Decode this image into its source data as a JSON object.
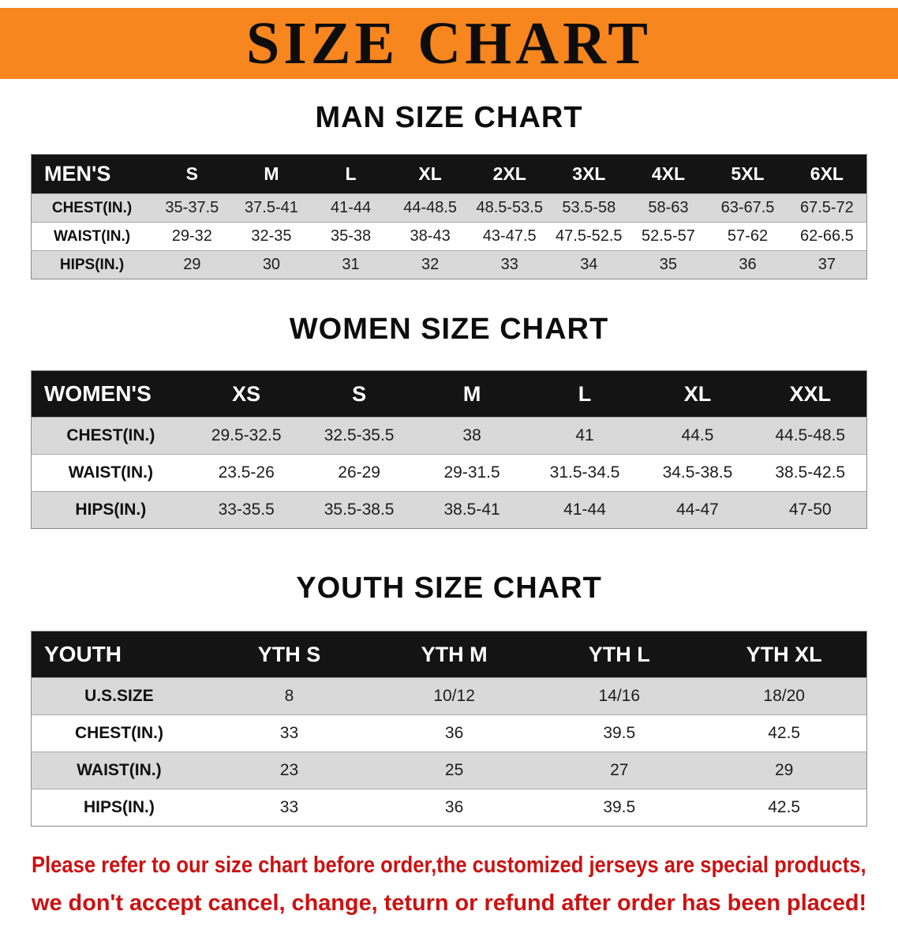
{
  "banner": {
    "title": "SIZE CHART"
  },
  "colors": {
    "banner_bg": "#F6861D",
    "table_header_bg": "#141414",
    "shaded_row": "#D9D9D9",
    "footer_text": "#CC1111"
  },
  "chart_data": [
    {
      "type": "table",
      "title": "MAN SIZE CHART",
      "header": [
        "MEN'S",
        "S",
        "M",
        "L",
        "XL",
        "2XL",
        "3XL",
        "4XL",
        "5XL",
        "6XL"
      ],
      "rows": [
        [
          "CHEST(IN.)",
          "35-37.5",
          "37.5-41",
          "41-44",
          "44-48.5",
          "48.5-53.5",
          "53.5-58",
          "58-63",
          "63-67.5",
          "67.5-72"
        ],
        [
          "WAIST(IN.)",
          "29-32",
          "32-35",
          "35-38",
          "38-43",
          "43-47.5",
          "47.5-52.5",
          "52.5-57",
          "57-62",
          "62-66.5"
        ],
        [
          "HIPS(IN.)",
          "29",
          "30",
          "31",
          "32",
          "33",
          "34",
          "35",
          "36",
          "37"
        ]
      ]
    },
    {
      "type": "table",
      "title": "WOMEN SIZE CHART",
      "header": [
        "WOMEN'S",
        "XS",
        "S",
        "M",
        "L",
        "XL",
        "XXL"
      ],
      "rows": [
        [
          "CHEST(IN.)",
          "29.5-32.5",
          "32.5-35.5",
          "38",
          "41",
          "44.5",
          "44.5-48.5"
        ],
        [
          "WAIST(IN.)",
          "23.5-26",
          "26-29",
          "29-31.5",
          "31.5-34.5",
          "34.5-38.5",
          "38.5-42.5"
        ],
        [
          "HIPS(IN.)",
          "33-35.5",
          "35.5-38.5",
          "38.5-41",
          "41-44",
          "44-47",
          "47-50"
        ]
      ]
    },
    {
      "type": "table",
      "title": "YOUTH SIZE CHART",
      "header": [
        "YOUTH",
        "YTH S",
        "YTH M",
        "YTH L",
        "YTH XL"
      ],
      "rows": [
        [
          "U.S.SIZE",
          "8",
          "10/12",
          "14/16",
          "18/20"
        ],
        [
          "CHEST(IN.)",
          "33",
          "36",
          "39.5",
          "42.5"
        ],
        [
          "WAIST(IN.)",
          "23",
          "25",
          "27",
          "29"
        ],
        [
          "HIPS(IN.)",
          "33",
          "36",
          "39.5",
          "42.5"
        ]
      ]
    }
  ],
  "footer": {
    "lines": [
      "Please refer to our size chart before order,the customized jerseys are special products,",
      "we don't accept cancel, change, teturn or refund after order has been placed!"
    ]
  }
}
